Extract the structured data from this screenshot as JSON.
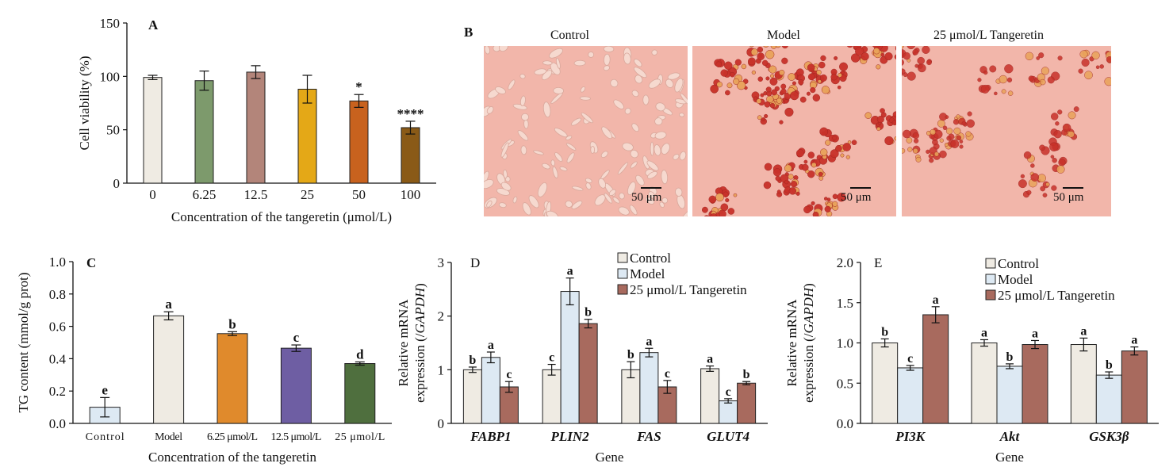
{
  "panel_labels": {
    "a": "A",
    "b": "B",
    "c": "C",
    "d": "D",
    "e": "E"
  },
  "micrographs": {
    "titles": [
      "Control",
      "Model",
      "25 μmol/L Tangeretin"
    ],
    "scale_bar": "50 μm",
    "colors": {
      "background": "#f2b6aa",
      "control_cells": "#f6d9cf",
      "lipid": "#c8322a"
    }
  },
  "chart_data": [
    {
      "id": "A",
      "type": "bar",
      "title": "",
      "categories": [
        "0",
        "6.25",
        "12.5",
        "25",
        "50",
        "100"
      ],
      "values": [
        99,
        96,
        104,
        88,
        77,
        52
      ],
      "errors": [
        2,
        9,
        6,
        13,
        6,
        6
      ],
      "annotations": [
        "",
        "",
        "",
        "",
        "*",
        "****"
      ],
      "colors": [
        "#efebe3",
        "#7d9a6c",
        "#b3857a",
        "#e4a817",
        "#c8621e",
        "#8a5a17"
      ],
      "xlabel": "Concentration of the tangeretin (μmol/L)",
      "ylabel": "Cell viability (%)",
      "ylim": [
        0,
        150
      ],
      "yticks": [
        0,
        50,
        100,
        150
      ],
      "grid": false
    },
    {
      "id": "C",
      "type": "bar",
      "title": "",
      "categories": [
        "Control",
        "Model",
        "6.25 μmol/L",
        "12.5 μmol/L",
        "25 μmol/L"
      ],
      "values": [
        0.1,
        0.665,
        0.555,
        0.465,
        0.37
      ],
      "errors": [
        0.06,
        0.025,
        0.012,
        0.02,
        0.01
      ],
      "annotations": [
        "e",
        "a",
        "b",
        "c",
        "d"
      ],
      "colors": [
        "#dde9f3",
        "#efebe3",
        "#e08a2c",
        "#6e5ea3",
        "#4f6f3e"
      ],
      "xlabel": "Concentration of the tangeretin",
      "ylabel": "TG content (mmol/g prot)",
      "ylim": [
        0,
        1.0
      ],
      "yticks": [
        "0.0",
        "0.2",
        "0.4",
        "0.6",
        "0.8",
        "1.0"
      ],
      "grid": false
    },
    {
      "id": "D",
      "type": "bar",
      "title": "",
      "categories": [
        "FABP1",
        "PLIN2",
        "FAS",
        "GLUT4"
      ],
      "series": [
        {
          "name": "Control",
          "color": "#efebe3",
          "values": [
            1.0,
            1.0,
            1.0,
            1.02
          ],
          "errors": [
            0.05,
            0.1,
            0.15,
            0.05
          ],
          "annotations": [
            "b",
            "c",
            "b",
            "a"
          ]
        },
        {
          "name": "Model",
          "color": "#dde9f3",
          "values": [
            1.23,
            2.46,
            1.32,
            0.42
          ],
          "errors": [
            0.1,
            0.25,
            0.08,
            0.04
          ],
          "annotations": [
            "a",
            "a",
            "a",
            "c"
          ]
        },
        {
          "name": "25 μmol/L Tangeretin",
          "color": "#a86a5e",
          "values": [
            0.68,
            1.86,
            0.68,
            0.75
          ],
          "errors": [
            0.1,
            0.08,
            0.12,
            0.03
          ],
          "annotations": [
            "c",
            "b",
            "c",
            "b"
          ]
        }
      ],
      "xlabel": "Gene",
      "ylabel": "Relative mRNA expression (/GAPDH)",
      "ylim": [
        0,
        3
      ],
      "yticks": [
        0,
        1,
        2,
        3
      ],
      "legend": "top-right",
      "grid": false
    },
    {
      "id": "E",
      "type": "bar",
      "title": "",
      "categories": [
        "PI3K",
        "Akt",
        "GSK3β"
      ],
      "series": [
        {
          "name": "Control",
          "color": "#efebe3",
          "values": [
            1.0,
            1.0,
            0.98
          ],
          "errors": [
            0.05,
            0.04,
            0.08
          ],
          "annotations": [
            "b",
            "a",
            "a"
          ]
        },
        {
          "name": "Model",
          "color": "#dde9f3",
          "values": [
            0.69,
            0.71,
            0.6
          ],
          "errors": [
            0.03,
            0.03,
            0.04
          ],
          "annotations": [
            "c",
            "b",
            "b"
          ]
        },
        {
          "name": "25 μmol/L Tangeretin",
          "color": "#a86a5e",
          "values": [
            1.35,
            0.98,
            0.9
          ],
          "errors": [
            0.1,
            0.05,
            0.05
          ],
          "annotations": [
            "a",
            "a",
            "a"
          ]
        }
      ],
      "xlabel": "Gene",
      "ylabel": "Relative mRNA expression (/GAPDH)",
      "ylim": [
        0,
        2.0
      ],
      "yticks": [
        "0.0",
        "0.5",
        "1.0",
        "1.5",
        "2.0"
      ],
      "legend": "top-right",
      "grid": false
    }
  ]
}
